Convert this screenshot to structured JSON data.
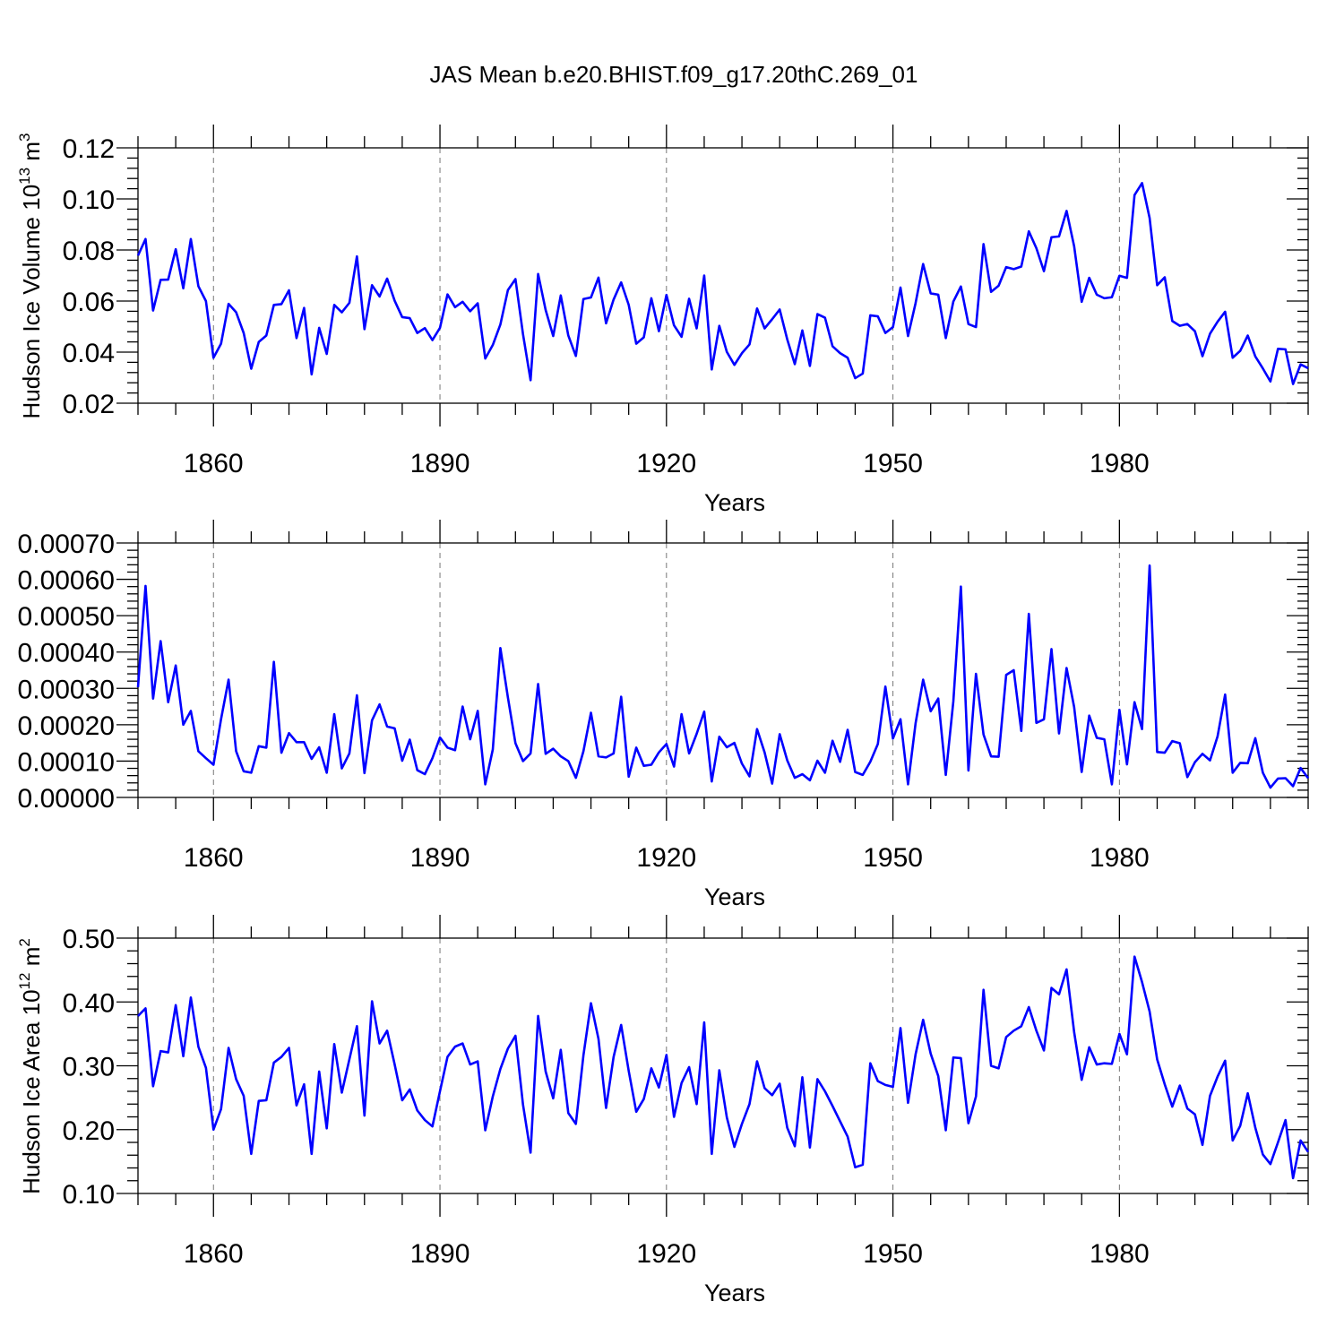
{
  "title": "JAS Mean b.e20.BHIST.f09_g17.20thC.269_01",
  "colors": {
    "series": "#0000ff",
    "grid": "#777777",
    "axes": "#000000"
  },
  "chart_data": [
    {
      "type": "line",
      "name": "ice-volume",
      "ylabel_main": "Hudson Ice Volume 10",
      "ylabel_sup1": "13",
      "ylabel_mid": " m",
      "ylabel_sup2": "3",
      "xlabel": "Years",
      "xlim": [
        1850,
        2005
      ],
      "ylim": [
        0.02,
        0.12
      ],
      "yticks": [
        0.02,
        0.04,
        0.06,
        0.08,
        0.1,
        0.12
      ],
      "ytick_labels": [
        "0.02",
        "0.04",
        "0.06",
        "0.08",
        "0.10",
        "0.12"
      ],
      "yminor_step": 0.004,
      "xticks": [
        1860,
        1890,
        1920,
        1950,
        1980
      ],
      "xtick_labels": [
        "1860",
        "1890",
        "1920",
        "1950",
        "1980"
      ],
      "x_start": 1850,
      "values": [
        0.0778,
        0.0843,
        0.0563,
        0.0683,
        0.0684,
        0.0803,
        0.065,
        0.0843,
        0.0658,
        0.06,
        0.0378,
        0.0433,
        0.0589,
        0.0556,
        0.0475,
        0.0335,
        0.044,
        0.0465,
        0.0585,
        0.0588,
        0.0642,
        0.0455,
        0.0573,
        0.0313,
        0.0495,
        0.0393,
        0.0585,
        0.0556,
        0.0593,
        0.0775,
        0.049,
        0.0662,
        0.0618,
        0.0688,
        0.0601,
        0.0537,
        0.0533,
        0.0475,
        0.0494,
        0.0447,
        0.0495,
        0.0626,
        0.0576,
        0.0597,
        0.056,
        0.0591,
        0.0375,
        0.0428,
        0.0508,
        0.0643,
        0.0686,
        0.047,
        0.029,
        0.0706,
        0.0565,
        0.0463,
        0.0622,
        0.0465,
        0.0385,
        0.0608,
        0.0614,
        0.0692,
        0.0513,
        0.0606,
        0.0673,
        0.0585,
        0.0433,
        0.0458,
        0.0611,
        0.0482,
        0.0624,
        0.0505,
        0.046,
        0.0609,
        0.0493,
        0.07,
        0.0332,
        0.0503,
        0.0401,
        0.035,
        0.0396,
        0.043,
        0.0571,
        0.0493,
        0.0529,
        0.0567,
        0.045,
        0.0353,
        0.0485,
        0.0346,
        0.0549,
        0.0535,
        0.0423,
        0.0396,
        0.0378,
        0.0298,
        0.0316,
        0.0544,
        0.054,
        0.0475,
        0.0498,
        0.0653,
        0.0463,
        0.0592,
        0.0745,
        0.063,
        0.0625,
        0.0455,
        0.0598,
        0.0657,
        0.051,
        0.0498,
        0.0823,
        0.0636,
        0.066,
        0.0733,
        0.0725,
        0.0735,
        0.0873,
        0.0807,
        0.0717,
        0.085,
        0.0853,
        0.0953,
        0.0815,
        0.0597,
        0.0691,
        0.0625,
        0.0611,
        0.0615,
        0.0699,
        0.0691,
        0.1015,
        0.1062,
        0.0925,
        0.0662,
        0.0693,
        0.0522,
        0.0503,
        0.051,
        0.0482,
        0.0384,
        0.0472,
        0.0519,
        0.0558,
        0.0378,
        0.0405,
        0.0465,
        0.0383,
        0.0336,
        0.0285,
        0.0413,
        0.0411,
        0.0275,
        0.0352,
        0.0337
      ]
    },
    {
      "type": "line",
      "name": "ice-thickness-like",
      "ylabel_main": "",
      "ylabel_sup1": "",
      "ylabel_mid": "",
      "ylabel_sup2": "",
      "xlabel": "Years",
      "xlim": [
        1850,
        2005
      ],
      "ylim": [
        0.0,
        0.0007
      ],
      "yticks": [
        0.0,
        0.0001,
        0.0002,
        0.0003,
        0.0004,
        0.0005,
        0.0006,
        0.0007
      ],
      "ytick_labels": [
        "0.00000",
        "0.00010",
        "0.00020",
        "0.00030",
        "0.00040",
        "0.00050",
        "0.00060",
        "0.00070"
      ],
      "yminor_step": 2e-05,
      "xticks": [
        1860,
        1890,
        1920,
        1950,
        1980
      ],
      "xtick_labels": [
        "1860",
        "1890",
        "1920",
        "1950",
        "1980"
      ],
      "x_start": 1850,
      "values": [
        0.000303,
        0.000582,
        0.000272,
        0.00043,
        0.000262,
        0.000363,
        0.0002,
        0.000238,
        0.000127,
        0.000108,
        9e-05,
        0.000215,
        0.000324,
        0.000127,
        7.2e-05,
        6.8e-05,
        0.000141,
        0.000137,
        0.000373,
        0.000123,
        0.000177,
        0.000152,
        0.000152,
        0.000106,
        0.000138,
        6.8e-05,
        0.000229,
        8e-05,
        0.000121,
        0.000281,
        6.7e-05,
        0.000212,
        0.000256,
        0.000195,
        0.00019,
        0.000101,
        0.000159,
        7.5e-05,
        6.4e-05,
        0.000108,
        0.000165,
        0.000137,
        0.00013,
        0.00025,
        0.00016,
        0.000238,
        3.6e-05,
        0.000132,
        0.000411,
        0.000275,
        0.000149,
        0.0001,
        0.000121,
        0.000312,
        0.00012,
        0.000134,
        0.000113,
        0.0001,
        5.4e-05,
        0.000127,
        0.000233,
        0.000113,
        0.00011,
        0.000121,
        0.000277,
        5.7e-05,
        0.000137,
        8.7e-05,
        9e-05,
        0.000124,
        0.000147,
        8.5e-05,
        0.000229,
        0.000121,
        0.000175,
        0.000236,
        4.4e-05,
        0.000167,
        0.000138,
        0.00015,
        9.3e-05,
        5.8e-05,
        0.000188,
        0.000124,
        3.8e-05,
        0.000174,
        0.000102,
        5.4e-05,
        6.4e-05,
        4.7e-05,
        0.000101,
        6.8e-05,
        0.000156,
        9.8e-05,
        0.000186,
        7e-05,
        6.2e-05,
        9.8e-05,
        0.000147,
        0.000305,
        0.000162,
        0.000215,
        3.6e-05,
        0.000204,
        0.000324,
        0.000237,
        0.000272,
        6.2e-05,
        0.000264,
        0.00058,
        7.4e-05,
        0.00034,
        0.000173,
        0.000113,
        0.000112,
        0.000337,
        0.00035,
        0.000183,
        0.000505,
        0.000205,
        0.000215,
        0.000408,
        0.000176,
        0.000356,
        0.000249,
        7e-05,
        0.000225,
        0.000164,
        0.00016,
        3.6e-05,
        0.000241,
        9.1e-05,
        0.000262,
        0.000188,
        0.000638,
        0.000125,
        0.000123,
        0.000155,
        0.000149,
        5.6e-05,
        9.7e-05,
        0.00012,
        0.000102,
        0.000168,
        0.000283,
        6.8e-05,
        9.5e-05,
        9.4e-05,
        0.000163,
        6.8e-05,
        2.7e-05,
        5.2e-05,
        5.3e-05,
        3.1e-05,
        8.1e-05,
        5.3e-05
      ]
    },
    {
      "type": "line",
      "name": "ice-area",
      "ylabel_main": "Hudson Ice Area 10",
      "ylabel_sup1": "12",
      "ylabel_mid": " m",
      "ylabel_sup2": "2",
      "xlabel": "Years",
      "xlim": [
        1850,
        2005
      ],
      "ylim": [
        0.1,
        0.5
      ],
      "yticks": [
        0.1,
        0.2,
        0.3,
        0.4,
        0.5
      ],
      "ytick_labels": [
        "0.10",
        "0.20",
        "0.30",
        "0.40",
        "0.50"
      ],
      "yminor_step": 0.02,
      "xticks": [
        1860,
        1890,
        1920,
        1950,
        1980
      ],
      "xtick_labels": [
        "1860",
        "1890",
        "1920",
        "1950",
        "1980"
      ],
      "x_start": 1850,
      "values": [
        0.378,
        0.39,
        0.268,
        0.323,
        0.321,
        0.395,
        0.315,
        0.407,
        0.33,
        0.297,
        0.2,
        0.232,
        0.328,
        0.279,
        0.253,
        0.162,
        0.245,
        0.246,
        0.305,
        0.314,
        0.328,
        0.238,
        0.271,
        0.162,
        0.291,
        0.202,
        0.334,
        0.258,
        0.31,
        0.362,
        0.222,
        0.401,
        0.335,
        0.355,
        0.302,
        0.246,
        0.263,
        0.23,
        0.215,
        0.205,
        0.26,
        0.314,
        0.33,
        0.335,
        0.302,
        0.307,
        0.199,
        0.252,
        0.295,
        0.327,
        0.347,
        0.239,
        0.164,
        0.378,
        0.291,
        0.249,
        0.325,
        0.226,
        0.209,
        0.316,
        0.398,
        0.342,
        0.234,
        0.314,
        0.364,
        0.292,
        0.228,
        0.248,
        0.296,
        0.266,
        0.317,
        0.22,
        0.273,
        0.298,
        0.24,
        0.368,
        0.162,
        0.293,
        0.219,
        0.173,
        0.209,
        0.24,
        0.307,
        0.265,
        0.254,
        0.272,
        0.203,
        0.174,
        0.282,
        0.172,
        0.279,
        0.26,
        0.237,
        0.213,
        0.189,
        0.141,
        0.145,
        0.304,
        0.276,
        0.27,
        0.267,
        0.359,
        0.242,
        0.318,
        0.372,
        0.319,
        0.284,
        0.199,
        0.313,
        0.312,
        0.21,
        0.252,
        0.419,
        0.3,
        0.296,
        0.345,
        0.355,
        0.362,
        0.392,
        0.355,
        0.324,
        0.422,
        0.412,
        0.451,
        0.353,
        0.278,
        0.329,
        0.302,
        0.304,
        0.303,
        0.35,
        0.318,
        0.471,
        0.431,
        0.385,
        0.31,
        0.271,
        0.236,
        0.269,
        0.233,
        0.224,
        0.176,
        0.253,
        0.283,
        0.308,
        0.183,
        0.206,
        0.257,
        0.203,
        0.161,
        0.146,
        0.18,
        0.215,
        0.124,
        0.183,
        0.165
      ]
    }
  ]
}
